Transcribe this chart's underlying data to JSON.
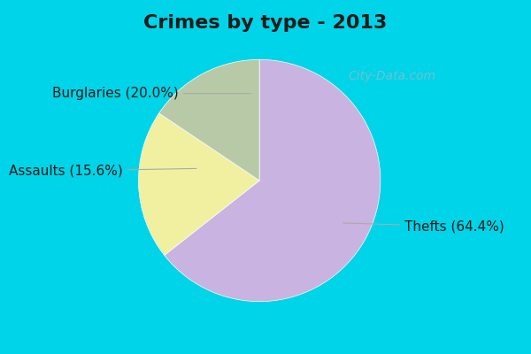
{
  "title": "Crimes by type - 2013",
  "slices": [
    {
      "label": "Thefts",
      "pct": 64.4,
      "color": "#c9b3e0"
    },
    {
      "label": "Burglaries",
      "pct": 20.0,
      "color": "#f0f0a0"
    },
    {
      "label": "Assaults",
      "pct": 15.6,
      "color": "#b8c9a8"
    }
  ],
  "startangle": 90,
  "background_top": "#00d4e8",
  "background_main": "#c8e8d8",
  "title_fontsize": 16,
  "label_fontsize": 11,
  "watermark": "City-Data.com"
}
